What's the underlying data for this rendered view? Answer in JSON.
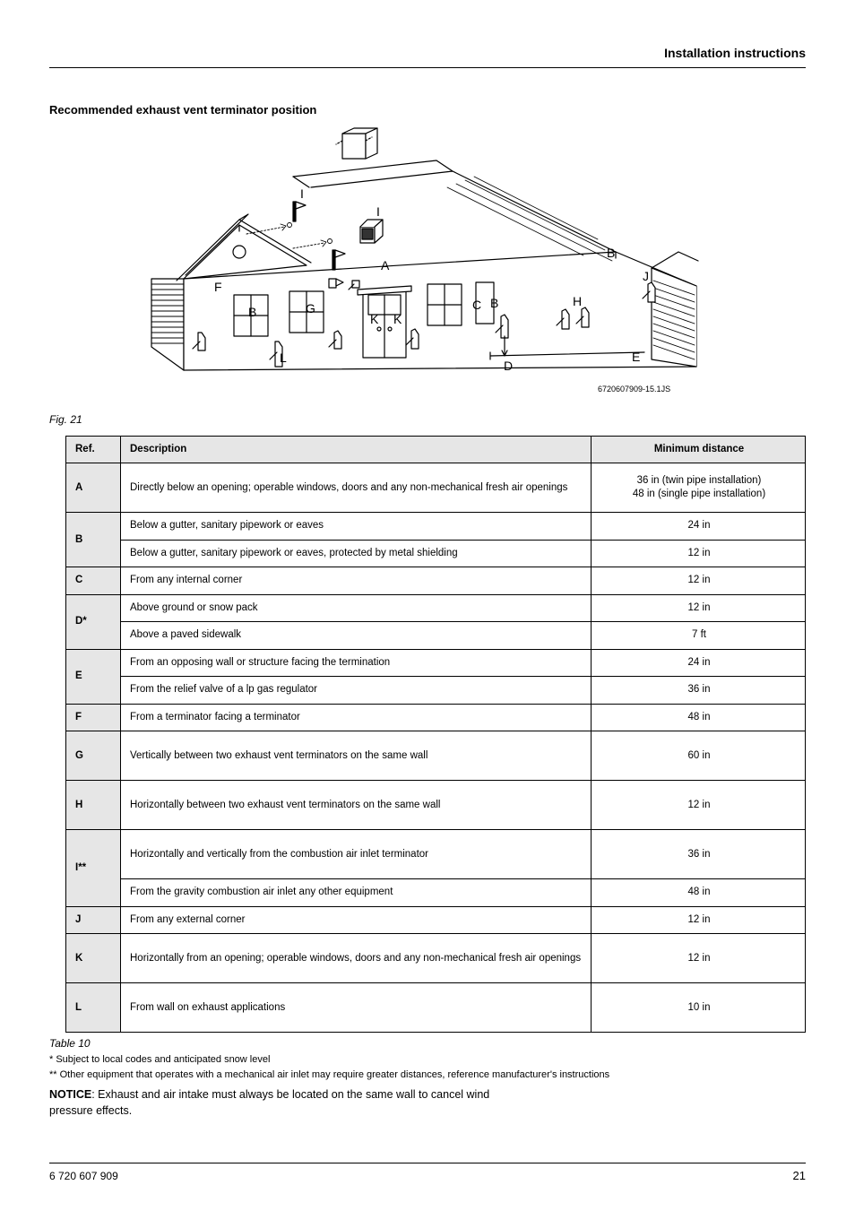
{
  "header": {
    "section_title": "Installation instructions"
  },
  "section": {
    "title": "Recommended exhaust vent terminator position"
  },
  "diagram": {
    "labels": [
      "A",
      "B",
      "C",
      "D",
      "E",
      "F",
      "G",
      "H",
      "I",
      "J",
      "K",
      "L"
    ],
    "ref_code": "6720607909-15.1JS",
    "stroke_color": "#000000",
    "fill_color": "#ffffff",
    "label_font_size": 14
  },
  "figure_caption": "Fig. 21",
  "table": {
    "headers": {
      "ref": "Ref.",
      "desc": "Description",
      "dist": "Minimum distance"
    },
    "rows": [
      {
        "ref": "A",
        "desc": "Directly below an opening; operable windows, doors and any non-mechanical fresh air openings",
        "dist": "36 in (twin pipe installation)\n48 in (single pipe installation)",
        "rowspan": 1,
        "tall": true
      },
      {
        "ref": "B",
        "desc": "Below a gutter, sanitary pipework or eaves",
        "dist": "24 in",
        "rowspan": 2
      },
      {
        "ref": "",
        "desc": "Below a gutter, sanitary pipework or eaves, protected by metal shielding",
        "dist": "12 in"
      },
      {
        "ref": "C",
        "desc": "From any internal corner",
        "dist": "12 in",
        "rowspan": 1
      },
      {
        "ref": "D*",
        "desc": "Above ground or snow pack",
        "dist": "12 in",
        "rowspan": 2
      },
      {
        "ref": "",
        "desc": "Above a paved sidewalk",
        "dist": "7 ft"
      },
      {
        "ref": "E",
        "desc": "From an opposing wall or structure facing the termination",
        "dist": "24 in",
        "rowspan": 2
      },
      {
        "ref": "",
        "desc": "From the relief valve of a lp gas regulator",
        "dist": "36 in"
      },
      {
        "ref": "F",
        "desc": "From a terminator facing a terminator",
        "dist": "48 in",
        "rowspan": 1
      },
      {
        "ref": "G",
        "desc": "Vertically between two exhaust vent terminators on the same wall",
        "dist": "60 in",
        "rowspan": 1,
        "tall": true
      },
      {
        "ref": "H",
        "desc": "Horizontally between two exhaust vent terminators on the same wall",
        "dist": "12 in",
        "rowspan": 1,
        "tall": true
      },
      {
        "ref": "I**",
        "desc": "Horizontally and vertically from the combustion air inlet terminator",
        "dist": "36 in",
        "rowspan": 2,
        "tall": true
      },
      {
        "ref": "",
        "desc": "From the gravity combustion air inlet any other equipment",
        "dist": "48 in"
      },
      {
        "ref": "J",
        "desc": "From any external corner",
        "dist": "12 in",
        "rowspan": 1
      },
      {
        "ref": "K",
        "desc": "Horizontally from an opening; operable windows, doors and any non-mechanical fresh air openings",
        "dist": "12 in",
        "rowspan": 1,
        "tall": true
      },
      {
        "ref": "L",
        "desc": "From wall on exhaust applications",
        "dist": "10 in",
        "rowspan": 1,
        "tall": true
      }
    ]
  },
  "table_caption": "Table 10",
  "footnotes": {
    "f1": "* Subject to local codes and anticipated snow level",
    "f2": "** Other equipment that operates with a mechanical air inlet may require greater distances, reference manufacturer's instructions"
  },
  "notice": {
    "label": "NOTICE",
    "text": ": Exhaust and air intake must always be located on the same wall to cancel wind pressure effects."
  },
  "footer": {
    "doc_number": "6 720 607 909",
    "page_number": "21"
  }
}
